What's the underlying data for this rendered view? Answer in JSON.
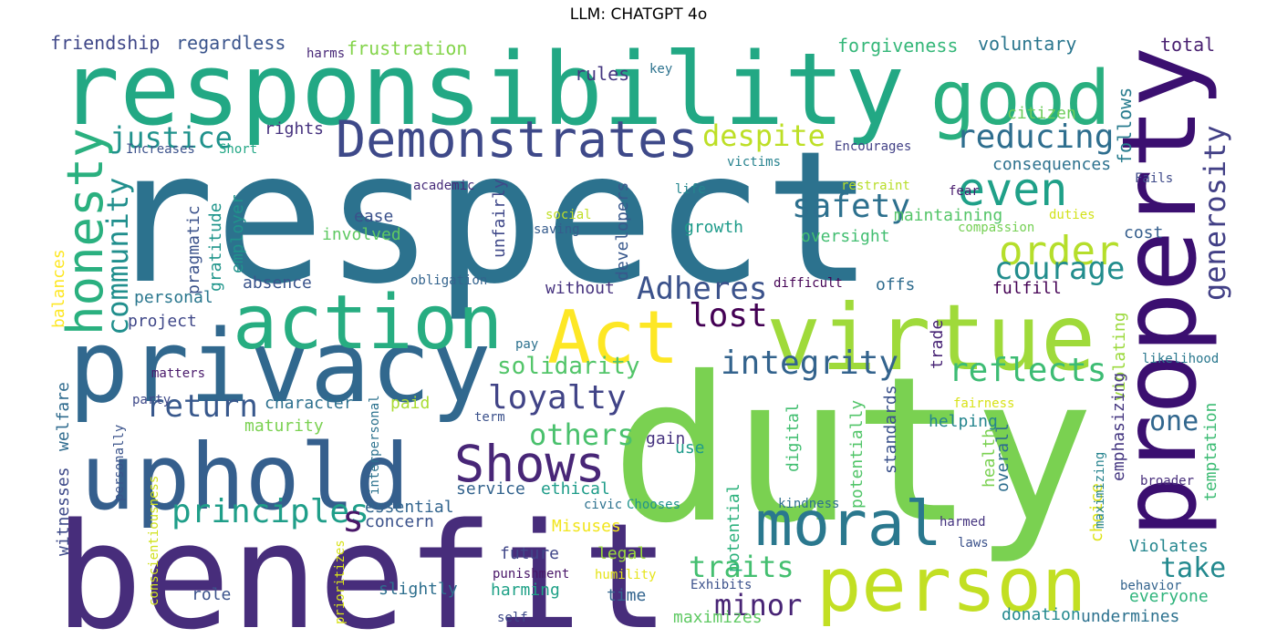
{
  "title": "LLM: CHATGPT 4o",
  "words": [
    {
      "text": "respect",
      "color": "#2c728e"
    },
    {
      "text": "duty",
      "color": "#7ad151"
    },
    {
      "text": "benefit",
      "color": "#472d7b"
    },
    {
      "text": "responsibility",
      "color": "#22a884"
    },
    {
      "text": "property",
      "color": "#3b0f70"
    },
    {
      "text": "privacy",
      "color": "#31688e"
    },
    {
      "text": "virtue",
      "color": "#9fda3a"
    },
    {
      "text": "uphold",
      "color": "#355f8d"
    },
    {
      "text": "person",
      "color": "#c2df23"
    },
    {
      "text": "action",
      "color": "#27ad81"
    },
    {
      "text": "good",
      "color": "#29af7f"
    },
    {
      "text": "Act",
      "color": "#fde725"
    },
    {
      "text": "moral",
      "color": "#2a788e"
    },
    {
      "text": "Demonstrates",
      "color": "#3e4989"
    },
    {
      "text": "Shows",
      "color": "#482677"
    },
    {
      "text": "honesty",
      "color": "#2ab07f"
    },
    {
      "text": "even",
      "color": "#1fa088"
    },
    {
      "text": "order",
      "color": "#b5de2b"
    },
    {
      "text": "integrity",
      "color": "#33638d"
    },
    {
      "text": "reflects",
      "color": "#3dbc74"
    },
    {
      "text": "loyalty",
      "color": "#414487"
    },
    {
      "text": "principles",
      "color": "#1f9e89"
    },
    {
      "text": "safety",
      "color": "#2d708e"
    },
    {
      "text": "courage",
      "color": "#228d8d"
    },
    {
      "text": "Adheres",
      "color": "#3b528b"
    },
    {
      "text": "lost",
      "color": "#440154"
    },
    {
      "text": "return",
      "color": "#38588c"
    },
    {
      "text": "reducing",
      "color": "#2e6e8e"
    },
    {
      "text": "generosity",
      "color": "#424086"
    },
    {
      "text": "community",
      "color": "#218f8d"
    },
    {
      "text": "justice",
      "color": "#20928c"
    },
    {
      "text": "despite",
      "color": "#bddf26"
    },
    {
      "text": "others",
      "color": "#4ac16d"
    },
    {
      "text": "traits",
      "color": "#44bf70"
    },
    {
      "text": "minor",
      "color": "#482475"
    },
    {
      "text": "take",
      "color": "#23898e"
    },
    {
      "text": "one",
      "color": "#31678e"
    },
    {
      "text": "solidarity",
      "color": "#52c569"
    },
    {
      "text": "s",
      "color": "#481769"
    },
    {
      "text": "frustration",
      "color": "#84d44b"
    },
    {
      "text": "forgiveness",
      "color": "#35b779"
    },
    {
      "text": "voluntary",
      "color": "#2a768e"
    },
    {
      "text": "friendship",
      "color": "#3f4788"
    },
    {
      "text": "regardless",
      "color": "#3a548c"
    },
    {
      "text": "rules",
      "color": "#453781"
    },
    {
      "text": "total",
      "color": "#481f70"
    },
    {
      "text": "harms",
      "color": "#482878"
    },
    {
      "text": "key",
      "color": "#2c728e"
    },
    {
      "text": "follows",
      "color": "#287c8e"
    },
    {
      "text": "rights",
      "color": "#46327e"
    },
    {
      "text": "citizen",
      "color": "#6ccd5a"
    },
    {
      "text": "consequences",
      "color": "#2c718e"
    },
    {
      "text": "Increases",
      "color": "#3b528b"
    },
    {
      "text": "Short",
      "color": "#22a785"
    },
    {
      "text": "Encourages",
      "color": "#424186"
    },
    {
      "text": "victims",
      "color": "#26828e"
    },
    {
      "text": "restraint",
      "color": "#b8de29"
    },
    {
      "text": "Fails",
      "color": "#3e4a89"
    },
    {
      "text": "academic",
      "color": "#472c7a"
    },
    {
      "text": "life",
      "color": "#24868e"
    },
    {
      "text": "fear",
      "color": "#481b6d"
    },
    {
      "text": "social",
      "color": "#c0df25"
    },
    {
      "text": "saving",
      "color": "#365c8d"
    },
    {
      "text": "duties",
      "color": "#d2e21b"
    },
    {
      "text": "compassion",
      "color": "#75d054"
    },
    {
      "text": "ease",
      "color": "#3b518b"
    },
    {
      "text": "involved",
      "color": "#5ec962"
    },
    {
      "text": "maintaining",
      "color": "#54c568"
    },
    {
      "text": "oversight",
      "color": "#42be71"
    },
    {
      "text": "cost",
      "color": "#355e8d"
    },
    {
      "text": "growth",
      "color": "#1e9b8a"
    },
    {
      "text": "developers",
      "color": "#38588c"
    },
    {
      "text": "unfairly",
      "color": "#3f4889"
    },
    {
      "text": "pragmatic",
      "color": "#3b528b"
    },
    {
      "text": "gratitude",
      "color": "#1f958b"
    },
    {
      "text": "employer",
      "color": "#20938c"
    },
    {
      "text": "balances",
      "color": "#fde725"
    },
    {
      "text": "absence",
      "color": "#3a548c"
    },
    {
      "text": "personal",
      "color": "#2a778e"
    },
    {
      "text": "obligation",
      "color": "#33638d"
    },
    {
      "text": "difficult",
      "color": "#440154"
    },
    {
      "text": "without",
      "color": "#46327e"
    },
    {
      "text": "offs",
      "color": "#2f6c8e"
    },
    {
      "text": "fulfill",
      "color": "#440154"
    },
    {
      "text": "project",
      "color": "#3f4788"
    },
    {
      "text": "pay",
      "color": "#2c718e"
    },
    {
      "text": "trade",
      "color": "#482475"
    },
    {
      "text": "violating",
      "color": "#9bd93c"
    },
    {
      "text": "likelihood",
      "color": "#2a788e"
    },
    {
      "text": "matters",
      "color": "#48186a"
    },
    {
      "text": "welfare",
      "color": "#2f6b8e"
    },
    {
      "text": "character",
      "color": "#2d708e"
    },
    {
      "text": "paid",
      "color": "#aadc32"
    },
    {
      "text": "digital",
      "color": "#43bf71"
    },
    {
      "text": "potentially",
      "color": "#52c569"
    },
    {
      "text": "standards",
      "color": "#3b528b"
    },
    {
      "text": "helping",
      "color": "#25858e"
    },
    {
      "text": "emphasizing",
      "color": "#453781"
    },
    {
      "text": "temptation",
      "color": "#3dbc74"
    },
    {
      "text": "party",
      "color": "#3e4989"
    },
    {
      "text": "maturity",
      "color": "#7ad151"
    },
    {
      "text": "gain",
      "color": "#46337f"
    },
    {
      "text": "use",
      "color": "#1e9b8a"
    },
    {
      "text": "fairness",
      "color": "#d8e219"
    },
    {
      "text": "term",
      "color": "#3b518b"
    },
    {
      "text": "interpersonal",
      "color": "#2c728e"
    },
    {
      "text": "health",
      "color": "#7ad151"
    },
    {
      "text": "overall",
      "color": "#2e6e8e"
    },
    {
      "text": "witnesses",
      "color": "#3e4a89"
    },
    {
      "text": "personally",
      "color": "#3a538b"
    },
    {
      "text": "conscientiousness",
      "color": "#d0e11c"
    },
    {
      "text": "service",
      "color": "#33638d"
    },
    {
      "text": "ethical",
      "color": "#1e9c89"
    },
    {
      "text": "essential",
      "color": "#32658e"
    },
    {
      "text": "concern",
      "color": "#3b528b"
    },
    {
      "text": "potential",
      "color": "#2db27d"
    },
    {
      "text": "choice",
      "color": "#dde318"
    },
    {
      "text": "civic",
      "color": "#2c718e"
    },
    {
      "text": "Chooses",
      "color": "#1f948c"
    },
    {
      "text": "kindness",
      "color": "#2d708e"
    },
    {
      "text": "maximizing",
      "color": "#25838e"
    },
    {
      "text": "broader",
      "color": "#472d7b"
    },
    {
      "text": "Misuses",
      "color": "#f1e51d"
    },
    {
      "text": "Violates",
      "color": "#24868e"
    },
    {
      "text": "harmed",
      "color": "#45347f"
    },
    {
      "text": "laws",
      "color": "#3b528b"
    },
    {
      "text": "prioritizes",
      "color": "#d8e219"
    },
    {
      "text": "future",
      "color": "#404688"
    },
    {
      "text": "legal",
      "color": "#9bd93c"
    },
    {
      "text": "punishment",
      "color": "#481467"
    },
    {
      "text": "humility",
      "color": "#e5e419"
    },
    {
      "text": "Exhibits",
      "color": "#3b518b"
    },
    {
      "text": "behavior",
      "color": "#33638d"
    },
    {
      "text": "everyone",
      "color": "#2fb47c"
    },
    {
      "text": "role",
      "color": "#3b528b"
    },
    {
      "text": "slightly",
      "color": "#2e6f8e"
    },
    {
      "text": "harming",
      "color": "#1fa187"
    },
    {
      "text": "time",
      "color": "#32648e"
    },
    {
      "text": "maximizes",
      "color": "#5ec962"
    },
    {
      "text": "donation",
      "color": "#23898e"
    },
    {
      "text": "undermines",
      "color": "#2c718e"
    },
    {
      "text": "self",
      "color": "#3e4989"
    }
  ]
}
